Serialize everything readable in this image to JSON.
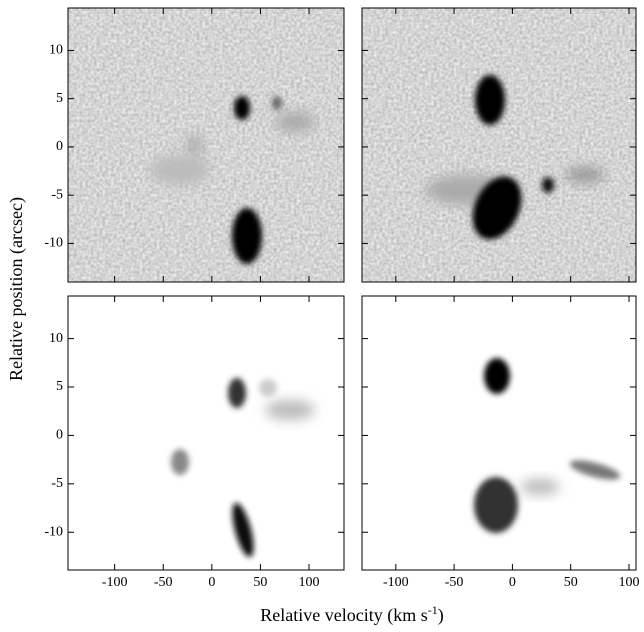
{
  "chart_data": [
    {
      "type": "image",
      "xlim": [
        -148,
        136
      ],
      "ylim": [
        -14,
        14.4
      ],
      "xticks": [
        -100,
        -50,
        0,
        50,
        100
      ],
      "yticks": [
        10,
        5,
        0,
        -5,
        -10
      ],
      "tick_labels": {
        "x": false,
        "y": true
      }
    },
    {
      "type": "image",
      "xlim": [
        -129,
        106
      ],
      "ylim": [
        -14,
        14.4
      ],
      "xticks": [
        -100,
        -50,
        0,
        50,
        100
      ],
      "yticks": [
        10,
        5,
        0,
        -5,
        -10
      ],
      "tick_labels": {
        "x": false,
        "y": false
      }
    },
    {
      "type": "image",
      "xlim": [
        -148,
        136
      ],
      "ylim": [
        -13.9,
        14.4
      ],
      "xticks": [
        -100,
        -50,
        0,
        50,
        100
      ],
      "yticks": [
        10,
        5,
        0,
        -5,
        -10
      ],
      "tick_labels": {
        "x": true,
        "y": true
      }
    },
    {
      "type": "image",
      "xlim": [
        -129,
        106
      ],
      "ylim": [
        -13.9,
        14.4
      ],
      "xticks": [
        -100,
        -50,
        0,
        50,
        100
      ],
      "yticks": [
        10,
        5,
        0,
        -5,
        -10
      ],
      "tick_labels": {
        "x": true,
        "y": false
      }
    }
  ],
  "figure": {
    "xlabel": "Relative velocity (km s",
    "xlabel_sup": "-1",
    "xlabel_end": ")",
    "ylabel": "Relative position (arcsec)"
  }
}
